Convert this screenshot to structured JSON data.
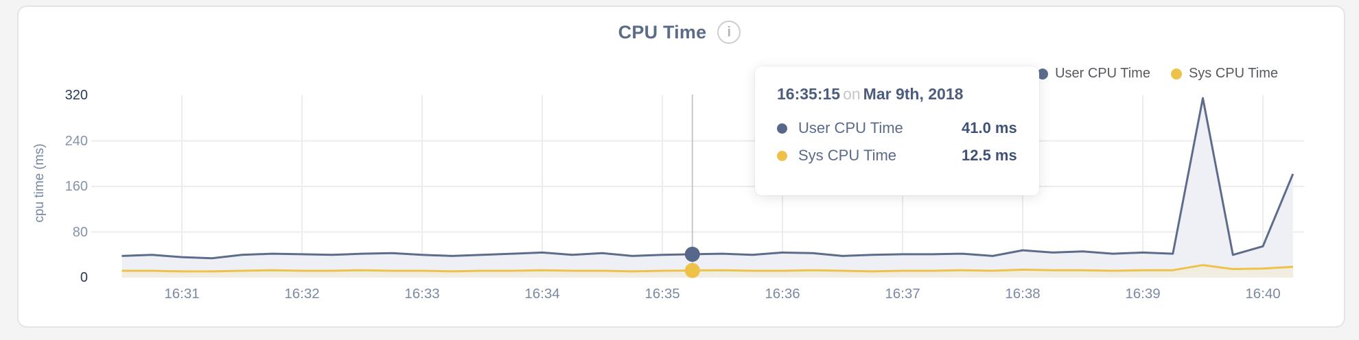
{
  "card": {
    "title": "CPU Time"
  },
  "icons": {
    "info_glyph": "i"
  },
  "legend": [
    {
      "label": "User CPU Time",
      "color": "#5d6c8b"
    },
    {
      "label": "Sys CPU Time",
      "color": "#eec24a"
    }
  ],
  "tooltip": {
    "time": "16:35:15",
    "conjunction": "on",
    "date": "Mar 9th, 2018",
    "rows": [
      {
        "label": "User CPU Time",
        "value": "41.0 ms",
        "color": "#56678a"
      },
      {
        "label": "Sys CPU Time",
        "value": "12.5 ms",
        "color": "#eec24a"
      }
    ]
  },
  "chart_data": {
    "type": "area",
    "title": "CPU Time",
    "xlabel": "",
    "ylabel": "cpu time (ms)",
    "ylim": [
      0,
      320
    ],
    "yticks": [
      0,
      80,
      160,
      240,
      320
    ],
    "ytick_color_edge": "#27395c",
    "ytick_color_mid": "#8593a9",
    "grid": true,
    "grid_color": "#ececec",
    "legend_position": "top-right",
    "x_tick_labels": [
      "16:31",
      "16:32",
      "16:33",
      "16:34",
      "16:35",
      "16:36",
      "16:37",
      "16:38",
      "16:39",
      "16:40"
    ],
    "x_tick_seconds": [
      60,
      120,
      180,
      240,
      300,
      360,
      420,
      480,
      540,
      600
    ],
    "x_start_time": "16:30:30",
    "x_interval_seconds": 15,
    "x_seconds": [
      30,
      45,
      60,
      75,
      90,
      105,
      120,
      135,
      150,
      165,
      180,
      195,
      210,
      225,
      240,
      255,
      270,
      285,
      300,
      315,
      330,
      345,
      360,
      375,
      390,
      405,
      420,
      435,
      450,
      465,
      480,
      495,
      510,
      525,
      540,
      555,
      570,
      585,
      600,
      615
    ],
    "series": [
      {
        "name": "User CPU Time",
        "color": "#5d6c8b",
        "fill": "#eef0f5",
        "values": [
          38,
          40,
          36,
          34,
          40,
          42,
          41,
          40,
          42,
          43,
          40,
          38,
          40,
          42,
          44,
          40,
          43,
          38,
          40,
          41,
          42,
          40,
          44,
          43,
          38,
          40,
          41,
          41,
          42,
          38,
          48,
          44,
          46,
          42,
          44,
          42,
          315,
          40,
          55,
          182
        ]
      },
      {
        "name": "Sys CPU Time",
        "color": "#eec24a",
        "fill": "#f1ede1",
        "values": [
          12,
          12,
          11,
          11,
          12,
          13,
          12,
          12,
          13,
          12,
          12,
          11,
          12,
          12,
          13,
          12,
          12,
          11,
          12,
          12.5,
          13,
          12,
          12,
          13,
          12,
          11,
          12,
          12,
          13,
          12,
          14,
          13,
          13,
          12,
          13,
          13,
          22,
          15,
          16,
          19
        ]
      }
    ],
    "hover": {
      "x_second": 315,
      "time": "16:35:15",
      "line_color": "#c8c8c8",
      "values": [
        {
          "series": "User CPU Time",
          "ms": 41.0
        },
        {
          "series": "Sys CPU Time",
          "ms": 12.5
        }
      ]
    }
  }
}
